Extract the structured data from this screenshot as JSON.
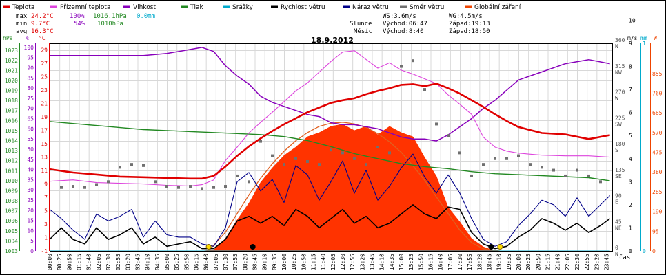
{
  "chart_data": {
    "type": "line",
    "title": "18.9.2012",
    "legend": [
      {
        "name": "Teplota",
        "color": "#e00000"
      },
      {
        "name": "Přízemní teplota",
        "color": "#dd44dd"
      },
      {
        "name": "Vlhkost",
        "color": "#8800bb"
      },
      {
        "name": "Tlak",
        "color": "#228822"
      },
      {
        "name": "Srážky",
        "color": "#00aacc"
      },
      {
        "name": "Rychlost větru",
        "color": "#000000"
      },
      {
        "name": "Náraz větru",
        "color": "#000088"
      },
      {
        "name": "Směr větru",
        "color": "#707070"
      },
      {
        "name": "Globální záření",
        "color": "#ee4400"
      }
    ],
    "stats": {
      "max_label": "max",
      "max_temp": "24.2°C",
      "max_hum": "100%",
      "max_press": "1016.1hPa",
      "rain": "0.0mm",
      "min_label": "min",
      "min_temp": "9.7°C",
      "min_hum": "54%",
      "min_press": "1010hPa",
      "avg_label": "avg",
      "avg_temp": "16.3°C"
    },
    "astro": {
      "ws": "WS:3.6m/s",
      "wg": "WG:4.5m/s",
      "sun_label": "Slunce",
      "sun_rise": "Východ:06:47",
      "sun_set": "Západ:19:13",
      "moon_label": "Měsíc",
      "moon_rise": "Východ:8:40",
      "moon_set": "Západ:18:50"
    },
    "axes": {
      "hpa": {
        "unit": "hPa",
        "ticks": [
          1003,
          1004,
          1005,
          1006,
          1007,
          1008,
          1009,
          1010,
          1011,
          1012,
          1013,
          1014,
          1015,
          1016,
          1017,
          1018,
          1019,
          1020,
          1021,
          1022,
          1023
        ]
      },
      "percent": {
        "unit": "%",
        "ticks": [
          0,
          5,
          10,
          15,
          20,
          25,
          30,
          35,
          40,
          45,
          50,
          55,
          60,
          65,
          70,
          75,
          80,
          85,
          90,
          95,
          100
        ]
      },
      "celsius": {
        "unit": "°C",
        "ticks": [
          -1,
          1,
          3,
          5,
          7,
          9,
          11,
          13,
          15,
          17,
          19,
          21,
          23,
          25,
          27,
          29
        ]
      },
      "direction": {
        "ticks": [
          {
            "v": 0,
            "l": "0"
          },
          {
            "v": 45,
            "l": "45"
          },
          {
            "v": 90,
            "l": "90"
          },
          {
            "v": 135,
            "l": "135"
          },
          {
            "v": 180,
            "l": "180"
          },
          {
            "v": 225,
            "l": "225"
          },
          {
            "v": 270,
            "l": "270"
          },
          {
            "v": 315,
            "l": "315"
          },
          {
            "v": 360,
            "l": "360"
          }
        ],
        "compass": [
          "N",
          "NE",
          "E",
          "SE",
          "S",
          "SW",
          "W",
          "NW",
          "N"
        ]
      },
      "ms": {
        "unit": "m/s",
        "ticks": [
          0,
          1,
          2,
          3,
          4,
          5,
          6,
          7,
          8,
          9,
          10
        ]
      },
      "mm": {
        "unit": "mm",
        "ticks": [
          0,
          1
        ]
      },
      "w": {
        "unit": "W",
        "ticks": [
          0,
          95,
          190,
          285,
          380,
          475,
          570,
          665,
          760,
          855
        ]
      },
      "x_label": "čas",
      "x_ticks": [
        "00:00",
        "00:25",
        "00:50",
        "01:15",
        "01:40",
        "02:05",
        "02:30",
        "02:55",
        "03:20",
        "03:45",
        "04:10",
        "04:35",
        "05:00",
        "05:25",
        "05:50",
        "06:15",
        "06:40",
        "07:05",
        "07:30",
        "07:55",
        "08:20",
        "08:45",
        "09:10",
        "09:35",
        "10:00",
        "10:25",
        "10:50",
        "11:15",
        "11:40",
        "12:05",
        "12:30",
        "12:55",
        "13:20",
        "13:45",
        "14:10",
        "14:35",
        "15:00",
        "15:25",
        "15:50",
        "16:15",
        "16:40",
        "17:05",
        "17:30",
        "17:55",
        "18:20",
        "18:45",
        "19:10",
        "19:35",
        "20:00",
        "20:25",
        "20:50",
        "21:15",
        "21:40",
        "22:05",
        "22:30",
        "22:55",
        "23:20",
        "23:45"
      ]
    },
    "series": {
      "temperature": {
        "x": [
          0,
          1,
          2,
          3,
          4,
          5,
          6,
          6.5,
          7,
          7.5,
          8,
          8.5,
          9,
          9.5,
          10,
          10.5,
          11,
          11.5,
          12,
          12.5,
          13,
          13.5,
          14,
          14.5,
          15,
          15.5,
          16,
          16.5,
          17,
          17.5,
          18,
          18.5,
          19,
          19.5,
          20,
          21,
          22,
          23,
          23.9
        ],
        "y": [
          11.2,
          10.7,
          10.4,
          10.1,
          10.0,
          9.9,
          9.8,
          9.8,
          10.2,
          11.6,
          13.2,
          14.6,
          15.8,
          16.9,
          17.9,
          18.8,
          19.7,
          20.4,
          21.1,
          21.5,
          21.8,
          22.4,
          22.9,
          23.3,
          23.8,
          23.9,
          23.6,
          24.0,
          23.3,
          22.5,
          21.5,
          20.5,
          19.4,
          18.4,
          17.5,
          16.6,
          16.4,
          15.7,
          16.3
        ]
      },
      "ground_temperature": {
        "x": [
          0,
          1,
          2,
          3,
          4,
          5,
          6,
          6.5,
          7,
          7.5,
          8,
          8.5,
          9,
          9.5,
          10,
          10.5,
          11,
          11.5,
          12,
          12.5,
          13,
          13.5,
          14,
          14.5,
          15,
          15.5,
          16,
          16.5,
          17,
          17.5,
          18,
          18.5,
          19,
          19.5,
          20,
          21,
          22,
          23,
          23.9
        ],
        "y": [
          9.4,
          9.6,
          9.2,
          9.1,
          9.0,
          8.8,
          8.7,
          8.9,
          9.6,
          12.5,
          14.5,
          16.6,
          18.2,
          19.7,
          21.3,
          22.9,
          24.1,
          25.7,
          27.3,
          28.7,
          28.9,
          27.6,
          26.3,
          27.1,
          26.0,
          25.4,
          24.7,
          24.0,
          22.3,
          20.9,
          19.4,
          16.0,
          14.5,
          13.9,
          13.6,
          13.3,
          13.2,
          13.2,
          13.0
        ]
      },
      "humidity": {
        "x": [
          0,
          1,
          2,
          3,
          4,
          5,
          6,
          6.5,
          7,
          7.5,
          8,
          8.5,
          9,
          9.5,
          10,
          10.5,
          11,
          11.5,
          12,
          12.5,
          13,
          13.5,
          14,
          14.5,
          15,
          15.5,
          16,
          16.5,
          17,
          17.5,
          18,
          18.5,
          19,
          19.5,
          20,
          21,
          22,
          23,
          23.9
        ],
        "y": [
          96,
          96,
          96,
          96,
          96,
          97,
          99,
          100,
          98,
          91,
          86,
          82,
          76,
          73,
          71,
          69,
          67,
          66,
          63,
          62,
          62,
          61,
          60,
          58,
          56,
          55,
          55,
          54,
          57,
          61,
          65,
          70,
          74,
          79,
          84,
          88,
          92,
          94,
          92
        ]
      },
      "pressure": {
        "x": [
          0,
          1,
          2,
          3,
          4,
          5,
          6,
          7,
          8,
          9,
          10,
          11,
          12,
          13,
          14,
          15,
          16,
          17,
          18,
          19,
          20,
          21,
          22,
          23,
          23.9
        ],
        "y": [
          1015.9,
          1015.7,
          1015.5,
          1015.3,
          1015.1,
          1015.0,
          1014.9,
          1014.8,
          1014.7,
          1014.6,
          1014.4,
          1014.0,
          1013.4,
          1012.7,
          1012.2,
          1011.7,
          1011.4,
          1011.2,
          1010.9,
          1010.7,
          1010.6,
          1010.5,
          1010.4,
          1010.3,
          1010.0
        ]
      },
      "rain": {
        "x": [
          0,
          23.9
        ],
        "y": [
          0,
          0
        ]
      },
      "wind_speed": {
        "x": [
          0,
          0.5,
          1,
          1.5,
          2,
          2.5,
          3,
          3.5,
          4,
          4.5,
          5,
          5.5,
          6,
          6.5,
          7,
          7.5,
          8,
          8.5,
          9,
          9.5,
          10,
          10.5,
          11,
          11.5,
          12,
          12.5,
          13,
          13.5,
          14,
          14.5,
          15,
          15.5,
          16,
          16.5,
          17,
          17.5,
          18,
          18.5,
          19,
          19.5,
          20,
          20.5,
          21,
          21.5,
          22,
          22.5,
          23,
          23.5,
          23.9
        ],
        "y": [
          0.5,
          1.0,
          0.5,
          0.3,
          1.0,
          0.5,
          0.7,
          1.0,
          0.3,
          0.6,
          0.2,
          0.3,
          0.4,
          0.1,
          0.1,
          0.5,
          1.3,
          1.5,
          1.2,
          1.5,
          1.1,
          1.8,
          1.5,
          1.0,
          1.4,
          1.8,
          1.2,
          1.5,
          1.0,
          1.2,
          1.6,
          2.0,
          1.6,
          1.4,
          1.9,
          1.8,
          0.8,
          0.3,
          0.1,
          0.2,
          0.6,
          0.9,
          1.4,
          1.2,
          0.9,
          1.2,
          0.8,
          1.1,
          1.4
        ]
      },
      "wind_gust": {
        "x": [
          0,
          0.5,
          1,
          1.5,
          2,
          2.5,
          3,
          3.5,
          4,
          4.5,
          5,
          5.5,
          6,
          6.5,
          7,
          7.5,
          8,
          8.5,
          9,
          9.5,
          10,
          10.5,
          11,
          11.5,
          12,
          12.5,
          13,
          13.5,
          14,
          14.5,
          15,
          15.5,
          16,
          16.5,
          17,
          17.5,
          18,
          18.5,
          19,
          19.5,
          20,
          20.5,
          21,
          21.5,
          22,
          22.5,
          23,
          23.5,
          23.9
        ],
        "y": [
          1.8,
          1.4,
          0.9,
          0.5,
          1.6,
          1.3,
          1.5,
          1.8,
          0.6,
          1.3,
          0.7,
          0.6,
          0.6,
          0.3,
          0.2,
          1.0,
          3.0,
          3.4,
          2.6,
          3.1,
          2.1,
          3.7,
          3.3,
          2.2,
          3.0,
          3.9,
          2.5,
          3.5,
          2.2,
          2.8,
          3.6,
          4.2,
          3.2,
          2.5,
          3.3,
          2.5,
          1.4,
          0.5,
          0.2,
          0.4,
          1.1,
          1.6,
          2.2,
          2.0,
          1.5,
          2.3,
          1.5,
          2.0,
          2.4
        ]
      },
      "wind_direction": {
        "x": [
          0.5,
          1,
          1.5,
          2,
          2.5,
          3,
          3.5,
          4,
          4.5,
          5,
          5.5,
          6,
          6.5,
          7,
          7.5,
          8,
          8.5,
          9,
          9.5,
          10,
          10.5,
          11,
          11.5,
          12,
          12.5,
          13,
          13.5,
          14,
          14.5,
          15,
          15.5,
          16,
          16.5,
          17,
          17.5,
          18,
          18.5,
          19,
          19.5,
          20,
          20.5,
          21,
          21.5,
          22,
          22.5,
          23,
          23.5
        ],
        "y": [
          110,
          112,
          110,
          115,
          120,
          145,
          150,
          148,
          120,
          112,
          110,
          112,
          108,
          110,
          112,
          130,
          120,
          190,
          165,
          150,
          160,
          155,
          150,
          175,
          170,
          160,
          150,
          180,
          170,
          320,
          330,
          280,
          220,
          200,
          170,
          130,
          150,
          160,
          160,
          165,
          150,
          145,
          140,
          130,
          140,
          130,
          120
        ]
      },
      "radiation": {
        "x": [
          0,
          6.5,
          7,
          7.5,
          8,
          8.5,
          9,
          9.5,
          10,
          10.5,
          11,
          11.5,
          12,
          12.5,
          13,
          13.5,
          14,
          14.5,
          15,
          15.5,
          16,
          16.5,
          17,
          17.5,
          18,
          18.5,
          19,
          23.9
        ],
        "y": [
          0,
          0,
          5,
          60,
          150,
          230,
          330,
          400,
          460,
          500,
          550,
          570,
          600,
          610,
          580,
          600,
          560,
          600,
          570,
          550,
          450,
          360,
          210,
          140,
          60,
          20,
          0,
          0
        ]
      },
      "radiation_clear_sky": {
        "x": [
          6.78,
          7.5,
          8,
          8.5,
          9,
          9.5,
          10,
          10.5,
          11,
          11.5,
          12,
          12.5,
          13,
          13.5,
          14,
          14.5,
          15,
          15.5,
          16,
          16.5,
          17,
          17.5,
          18,
          18.5,
          19.2
        ],
        "y": [
          0,
          90,
          180,
          270,
          350,
          420,
          480,
          530,
          570,
          600,
          615,
          620,
          612,
          595,
          565,
          525,
          475,
          410,
          340,
          260,
          180,
          100,
          40,
          10,
          0
        ]
      }
    }
  }
}
